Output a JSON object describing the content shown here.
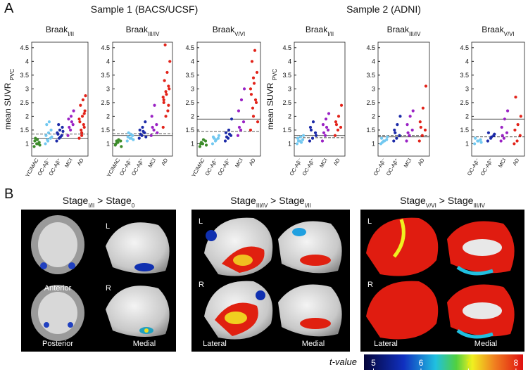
{
  "panel_a": {
    "label": "A",
    "samples": [
      {
        "title": "Sample 1 (BACS/UCSF)"
      },
      {
        "title": "Sample 2 (ADNI)"
      }
    ]
  },
  "chart_data": [
    {
      "type": "strip",
      "title": "Braak",
      "title_sub": "I/II",
      "y_label": "mean SUVR",
      "y_label_sub": "PVC",
      "categories": [
        "YC/MAC",
        "OC-Aβ⁻",
        "OC-Aβ⁺",
        "MCI",
        "AD"
      ],
      "colors": [
        "#3c8c2a",
        "#72c8f0",
        "#1c2aa8",
        "#9a22c4",
        "#e2231a"
      ],
      "values": [
        [
          0.9,
          1.0,
          1.05,
          1.1,
          1.15,
          0.95,
          1.2,
          1.0
        ],
        [
          1.0,
          1.1,
          1.2,
          1.3,
          1.4,
          1.5,
          1.7,
          1.8,
          1.25,
          1.15
        ],
        [
          1.1,
          1.2,
          1.3,
          1.4,
          1.5,
          1.6,
          1.35,
          1.25,
          1.45,
          1.7
        ],
        [
          1.3,
          1.5,
          1.7,
          1.9,
          2.0,
          2.2,
          1.6,
          1.8
        ],
        [
          1.2,
          1.4,
          1.6,
          1.8,
          2.0,
          2.2,
          2.4,
          2.6,
          2.75,
          1.5,
          1.7,
          1.9,
          1.3,
          2.1
        ]
      ],
      "hlines": [
        {
          "value": 1.2,
          "style": "solid"
        },
        {
          "value": 1.35,
          "style": "dashed"
        }
      ],
      "ylim": [
        0.55,
        4.7
      ],
      "yticks": [
        1,
        1.5,
        2,
        2.5,
        3,
        3.5,
        4,
        4.5
      ]
    },
    {
      "type": "strip",
      "title": "Braak",
      "title_sub": "III/IV",
      "categories": [
        "YC/MAC",
        "OC-Aβ⁻",
        "OC-Aβ⁺",
        "MCI",
        "AD"
      ],
      "colors": [
        "#3c8c2a",
        "#72c8f0",
        "#1c2aa8",
        "#9a22c4",
        "#e2231a"
      ],
      "values": [
        [
          0.95,
          1.05,
          1.1,
          1.0,
          1.15,
          0.9,
          1.1
        ],
        [
          1.1,
          1.2,
          1.3,
          1.25,
          1.35,
          1.15,
          1.4,
          1.2
        ],
        [
          1.2,
          1.3,
          1.4,
          1.5,
          1.6,
          1.8,
          1.35,
          1.45,
          1.25
        ],
        [
          1.3,
          1.5,
          1.7,
          2.0,
          2.4,
          1.4,
          1.6
        ],
        [
          1.6,
          2.0,
          2.4,
          2.6,
          2.8,
          3.0,
          3.3,
          3.6,
          4.0,
          4.6,
          2.2,
          2.7,
          2.9,
          3.1,
          2.5
        ]
      ],
      "hlines": [
        {
          "value": 1.3,
          "style": "solid"
        },
        {
          "value": 1.37,
          "style": "dashed"
        }
      ],
      "ylim": [
        0.55,
        4.7
      ],
      "yticks": [
        1,
        1.5,
        2,
        2.5,
        3,
        3.5,
        4,
        4.5
      ]
    },
    {
      "type": "strip",
      "title": "Braak",
      "title_sub": "V/VI",
      "categories": [
        "YC/MAC",
        "OC-Aβ⁻",
        "OC-Aβ⁺",
        "MCI",
        "AD"
      ],
      "colors": [
        "#3c8c2a",
        "#72c8f0",
        "#1c2aa8",
        "#9a22c4",
        "#e2231a"
      ],
      "values": [
        [
          0.9,
          1.0,
          1.1,
          1.0,
          1.15,
          0.95,
          1.05
        ],
        [
          1.0,
          1.1,
          1.2,
          1.25,
          1.15,
          1.3,
          1.2
        ],
        [
          1.1,
          1.2,
          1.3,
          1.4,
          1.5,
          1.9,
          1.25,
          1.35
        ],
        [
          1.3,
          1.5,
          1.8,
          2.2,
          2.6,
          3.0,
          1.6
        ],
        [
          1.5,
          2.0,
          2.5,
          2.8,
          3.2,
          3.6,
          4.0,
          4.4,
          1.8,
          2.3,
          2.6,
          3.0,
          3.4
        ]
      ],
      "hlines": [
        {
          "value": 1.9,
          "style": "solid"
        },
        {
          "value": 1.45,
          "style": "dashed"
        }
      ],
      "ylim": [
        0.55,
        4.7
      ],
      "yticks": [
        1,
        1.5,
        2,
        2.5,
        3,
        3.5,
        4,
        4.5
      ]
    },
    {
      "type": "strip",
      "title": "Braak",
      "title_sub": "I/II",
      "y_label": "mean SUVR",
      "y_label_sub": "PVC",
      "categories": [
        "OC-Aβ⁻",
        "OC-Aβ⁺",
        "MCI",
        "AD"
      ],
      "colors": [
        "#72c8f0",
        "#1c2aa8",
        "#9a22c4",
        "#e2231a"
      ],
      "values": [
        [
          1.0,
          1.1,
          1.15,
          1.2,
          1.25,
          1.3,
          1.1,
          1.05
        ],
        [
          1.1,
          1.2,
          1.4,
          1.6,
          1.8,
          1.3,
          1.5
        ],
        [
          1.1,
          1.3,
          1.5,
          1.7,
          1.9,
          2.1,
          1.4,
          1.6
        ],
        [
          1.3,
          1.5,
          1.6,
          1.8,
          2.0,
          2.4,
          1.7
        ]
      ],
      "hlines": [
        {
          "value": 1.3,
          "style": "solid"
        },
        {
          "value": 1.22,
          "style": "dashed"
        }
      ],
      "ylim": [
        0.55,
        4.7
      ],
      "yticks": [
        1,
        1.5,
        2,
        2.5,
        3,
        3.5,
        4,
        4.5
      ]
    },
    {
      "type": "strip",
      "title": "Braak",
      "title_sub": "III/IV",
      "categories": [
        "OC-Aβ⁻",
        "OC-Aβ⁺",
        "MCI",
        "AD"
      ],
      "colors": [
        "#72c8f0",
        "#1c2aa8",
        "#9a22c4",
        "#e2231a"
      ],
      "values": [
        [
          1.0,
          1.1,
          1.15,
          1.2,
          1.1,
          1.25,
          1.05
        ],
        [
          1.1,
          1.2,
          1.3,
          1.5,
          1.7,
          2.0,
          1.4
        ],
        [
          1.1,
          1.3,
          1.5,
          1.7,
          2.0,
          2.2,
          1.4
        ],
        [
          1.1,
          1.3,
          1.5,
          1.8,
          2.3,
          3.1,
          1.6
        ]
      ],
      "hlines": [
        {
          "value": 1.25,
          "style": "solid"
        },
        {
          "value": 1.3,
          "style": "dashed"
        }
      ],
      "ylim": [
        0.55,
        4.7
      ],
      "yticks": [
        1,
        1.5,
        2,
        2.5,
        3,
        3.5,
        4,
        4.5
      ]
    },
    {
      "type": "strip",
      "title": "Braak",
      "title_sub": "V/VI",
      "categories": [
        "OC-Aβ⁻",
        "OC-Aβ⁺",
        "MCI",
        "AD"
      ],
      "colors": [
        "#72c8f0",
        "#1c2aa8",
        "#9a22c4",
        "#e2231a"
      ],
      "values": [
        [
          1.0,
          1.1,
          1.15,
          1.2,
          1.1,
          1.05
        ],
        [
          1.1,
          1.2,
          1.3,
          1.4,
          1.25,
          1.35
        ],
        [
          1.1,
          1.2,
          1.4,
          1.6,
          1.9,
          2.2,
          1.3
        ],
        [
          1.0,
          1.1,
          1.3,
          1.5,
          1.7,
          2.0,
          2.7
        ]
      ],
      "hlines": [
        {
          "value": 1.9,
          "style": "solid"
        },
        {
          "value": 1.25,
          "style": "dashed"
        }
      ],
      "ylim": [
        0.55,
        4.7
      ],
      "yticks": [
        1,
        1.5,
        2,
        2.5,
        3,
        3.5,
        4,
        4.5
      ]
    }
  ],
  "panel_b": {
    "label": "B",
    "maps": [
      {
        "title_parts": [
          {
            "text": "Stage"
          },
          {
            "text": "I/II",
            "sub": true
          },
          {
            "text": " > Stage"
          },
          {
            "text": "0",
            "sub": true
          }
        ],
        "labels": [
          "L",
          "R",
          "Anterior",
          "Posterior",
          "Medial"
        ]
      },
      {
        "title_parts": [
          {
            "text": "Stage"
          },
          {
            "text": "III/IV",
            "sub": true
          },
          {
            "text": " > Stage"
          },
          {
            "text": "I/II",
            "sub": true
          }
        ],
        "labels": [
          "L",
          "R",
          "Lateral",
          "Medial"
        ]
      },
      {
        "title_parts": [
          {
            "text": "Stage"
          },
          {
            "text": "V/VI",
            "sub": true
          },
          {
            "text": " > Stage"
          },
          {
            "text": "III/IV",
            "sub": true
          }
        ],
        "labels": [
          "L",
          "R",
          "Lateral",
          "Medial"
        ]
      }
    ],
    "colorbar": {
      "label": "t-value",
      "lim": [
        4.8,
        8.15
      ],
      "ticks": [
        5,
        6,
        7,
        8
      ]
    }
  }
}
